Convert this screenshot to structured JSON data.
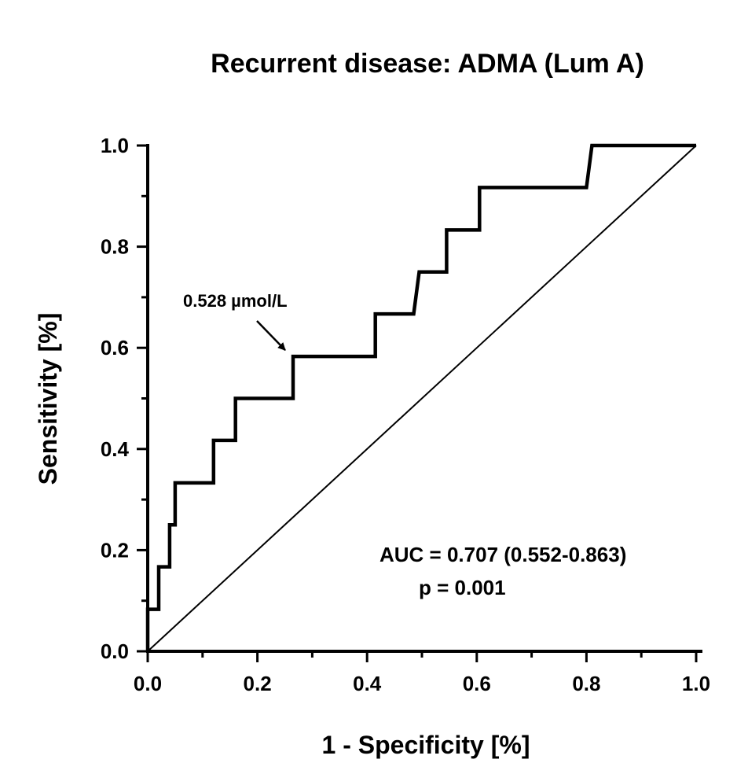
{
  "chart_data": {
    "type": "line",
    "title": "Recurrent disease: ADMA (Lum A)",
    "xlabel": "1 - Specificity [%]",
    "ylabel": "Sensitivity [%]",
    "xlim": [
      0,
      1
    ],
    "ylim": [
      0,
      1
    ],
    "x_ticks": [
      "0.0",
      "0.2",
      "0.4",
      "0.6",
      "0.8",
      "1.0"
    ],
    "y_ticks": [
      "0.0",
      "0.2",
      "0.4",
      "0.6",
      "0.8",
      "1.0"
    ],
    "grid": false,
    "series": [
      {
        "name": "",
        "style": "step",
        "color": "#000000",
        "points": [
          [
            0.0,
            0.0
          ],
          [
            0.0,
            0.083
          ],
          [
            0.02,
            0.083
          ],
          [
            0.02,
            0.167
          ],
          [
            0.04,
            0.167
          ],
          [
            0.04,
            0.25
          ],
          [
            0.05,
            0.25
          ],
          [
            0.05,
            0.333
          ],
          [
            0.12,
            0.333
          ],
          [
            0.12,
            0.417
          ],
          [
            0.16,
            0.417
          ],
          [
            0.16,
            0.5
          ],
          [
            0.265,
            0.5
          ],
          [
            0.265,
            0.583
          ],
          [
            0.415,
            0.583
          ],
          [
            0.415,
            0.667
          ],
          [
            0.485,
            0.667
          ],
          [
            0.495,
            0.75
          ],
          [
            0.545,
            0.75
          ],
          [
            0.545,
            0.833
          ],
          [
            0.605,
            0.833
          ],
          [
            0.605,
            0.917
          ],
          [
            0.8,
            0.917
          ],
          [
            0.81,
            1.0
          ],
          [
            1.0,
            1.0
          ]
        ]
      },
      {
        "name": "",
        "style": "reference",
        "color": "#000000",
        "points": [
          [
            0,
            0
          ],
          [
            1,
            1
          ]
        ]
      }
    ],
    "annotations": {
      "cutoff_label": "0.528 µmol/L",
      "cutoff_point": [
        0.265,
        0.583
      ],
      "auc": "AUC = 0.707 (0.552-0.863)",
      "p_value": "p = 0.001"
    }
  }
}
